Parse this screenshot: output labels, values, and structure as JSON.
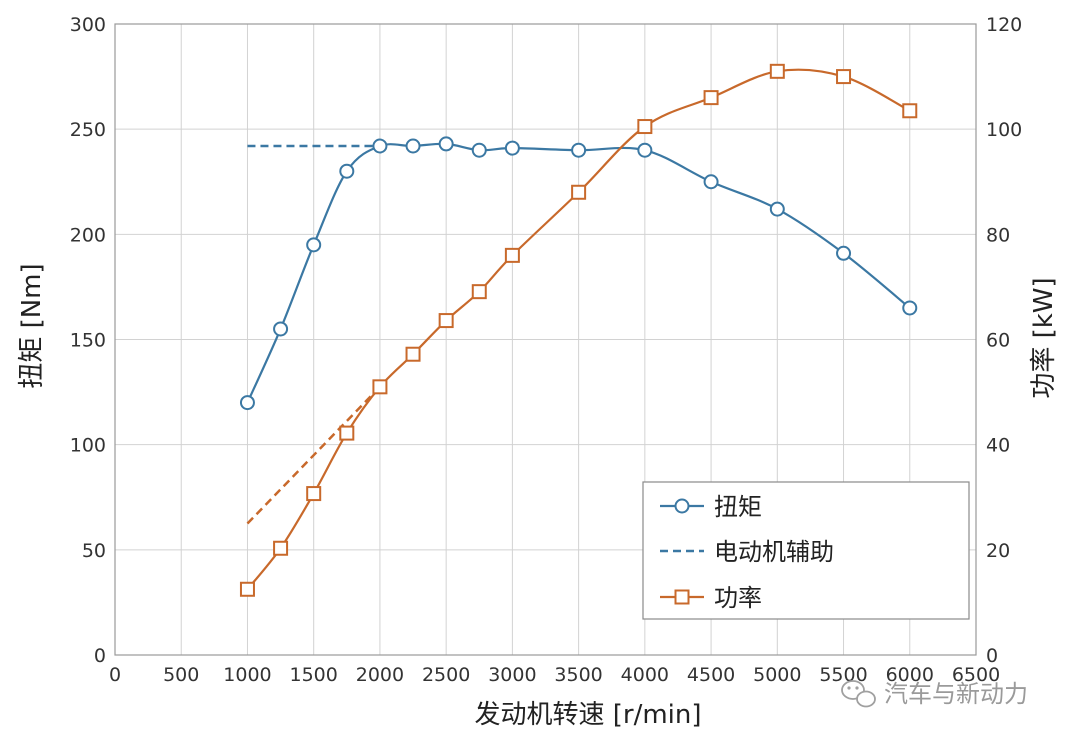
{
  "chart_data": {
    "type": "line",
    "xlabel": "发动机转速 [r/min]",
    "ylabel_left": "扭矩 [Nm]",
    "ylabel_right": "功率 [kW]",
    "xlim": [
      0,
      6500
    ],
    "ylim_left": [
      0,
      300
    ],
    "ylim_right": [
      0,
      120
    ],
    "x_ticks": [
      0,
      500,
      1000,
      1500,
      2000,
      2500,
      3000,
      3500,
      4000,
      4500,
      5000,
      5500,
      6000,
      6500
    ],
    "y_left_ticks": [
      0,
      50,
      100,
      150,
      200,
      250,
      300
    ],
    "y_right_ticks": [
      0,
      20,
      40,
      60,
      80,
      100,
      120
    ],
    "grid": true,
    "legend_position": "bottom-right",
    "series": [
      {
        "name": "扭矩",
        "axis": "left",
        "color": "#3b78a3",
        "marker": "circle",
        "style": "solid",
        "x": [
          1000,
          1250,
          1500,
          1750,
          2000,
          2250,
          2500,
          2750,
          3000,
          3500,
          4000,
          4500,
          5000,
          5500,
          6000
        ],
        "y": [
          120,
          155,
          195,
          230,
          242,
          242,
          243,
          240,
          241,
          240,
          240,
          225,
          212,
          191,
          165
        ]
      },
      {
        "name": "电动机辅助",
        "axis": "left",
        "color": "#3b78a3",
        "marker": "none",
        "style": "dashed",
        "x": [
          1000,
          2000
        ],
        "y": [
          242,
          242
        ]
      },
      {
        "name": "",
        "axis": "right",
        "color": "#c8692b",
        "marker": "none",
        "style": "dashed",
        "x": [
          1000,
          2000
        ],
        "y": [
          25,
          51
        ]
      },
      {
        "name": "功率",
        "axis": "right",
        "color": "#c8692b",
        "marker": "square",
        "style": "solid",
        "x": [
          1000,
          1250,
          1500,
          1750,
          2000,
          2250,
          2500,
          2750,
          3000,
          3500,
          4000,
          4500,
          5000,
          5500,
          6000
        ],
        "y": [
          12.5,
          20.3,
          30.7,
          42.2,
          51,
          57.2,
          63.6,
          69.1,
          76,
          88,
          100.5,
          106,
          111,
          110,
          103.5
        ]
      }
    ]
  },
  "watermark": {
    "text": "汽车与新动力",
    "icon": "wechat-icon"
  }
}
